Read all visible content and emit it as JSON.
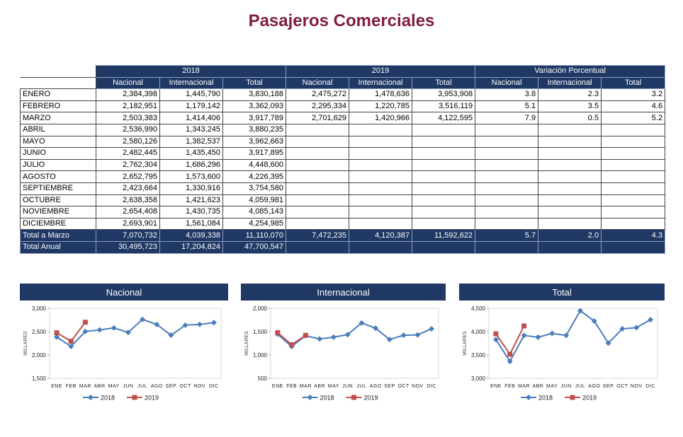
{
  "title": "Pasajeros Comerciales",
  "table": {
    "header_groups": [
      "2018",
      "2019",
      "Variación Porcentual"
    ],
    "columns": [
      "Nacional",
      "Internacional",
      "Total"
    ],
    "rows": [
      [
        "ENERO",
        "2,384,398",
        "1,445,790",
        "3,830,188",
        "2,475,272",
        "1,478,636",
        "3,953,908",
        "3.8",
        "2.3",
        "3.2"
      ],
      [
        "FEBRERO",
        "2,182,951",
        "1,179,142",
        "3,362,093",
        "2,295,334",
        "1,220,785",
        "3,516,119",
        "5.1",
        "3.5",
        "4.6"
      ],
      [
        "MARZO",
        "2,503,383",
        "1,414,406",
        "3,917,789",
        "2,701,629",
        "1,420,966",
        "4,122,595",
        "7.9",
        "0.5",
        "5.2"
      ],
      [
        "ABRIL",
        "2,536,990",
        "1,343,245",
        "3,880,235"
      ],
      [
        "MAYO",
        "2,580,126",
        "1,382,537",
        "3,962,663"
      ],
      [
        "JUNIO",
        "2,482,445",
        "1,435,450",
        "3,917,895"
      ],
      [
        "JULIO",
        "2,762,304",
        "1,686,296",
        "4,448,600"
      ],
      [
        "AGOSTO",
        "2,652,795",
        "1,573,600",
        "4,226,395"
      ],
      [
        "SEPTIEMBRE",
        "2,423,664",
        "1,330,916",
        "3,754,580"
      ],
      [
        "OCTUBRE",
        "2,638,358",
        "1,421,623",
        "4,059,981"
      ],
      [
        "NOVIEMBRE",
        "2,654,408",
        "1,430,735",
        "4,085,143"
      ],
      [
        "DICIEMBRE",
        "2,693,901",
        "1,561,084",
        "4,254,985"
      ]
    ],
    "totals": [
      [
        "Total a Marzo",
        "7,070,732",
        "4,039,338",
        "11,110,070",
        "7,472,235",
        "4,120,387",
        "11,592,622",
        "5.7",
        "2.0",
        "4.3"
      ],
      [
        "Total Anual",
        "30,495,723",
        "17,204,824",
        "47,700,547"
      ]
    ]
  },
  "chart_data": [
    {
      "type": "line",
      "title": "Nacional",
      "ylabel": "MILLARES",
      "categories": [
        "ENE",
        "FEB",
        "MAR",
        "ABR",
        "MAY",
        "JUN",
        "JUL",
        "AGO",
        "SEP",
        "OCT",
        "NOV",
        "DIC"
      ],
      "series": [
        {
          "name": "2018",
          "color": "#4a7ebb",
          "marker": "diamond",
          "values": [
            2384.398,
            2182.951,
            2503.383,
            2536.99,
            2580.126,
            2482.445,
            2762.304,
            2652.795,
            2423.664,
            2638.358,
            2654.408,
            2693.901
          ]
        },
        {
          "name": "2019",
          "color": "#c0504d",
          "marker": "square",
          "values": [
            2475.272,
            2295.334,
            2701.629,
            null,
            null,
            null,
            null,
            null,
            null,
            null,
            null,
            null
          ]
        }
      ],
      "ylim": [
        1500,
        3000
      ],
      "yticks": [
        {
          "value": 1500,
          "label": "1,500"
        },
        {
          "value": 2000,
          "label": "2,000"
        },
        {
          "value": 2500,
          "label": "2,500"
        },
        {
          "value": 3000,
          "label": "3,000"
        }
      ],
      "legend": "bottom"
    },
    {
      "type": "line",
      "title": "Internacional",
      "ylabel": "MILLARES",
      "categories": [
        "ENE",
        "FEB",
        "MAR",
        "ABR",
        "MAY",
        "JUN",
        "JUL",
        "AGO",
        "SEP",
        "OCT",
        "NOV",
        "DIC"
      ],
      "series": [
        {
          "name": "2018",
          "color": "#4a7ebb",
          "marker": "diamond",
          "values": [
            1445.79,
            1179.142,
            1414.406,
            1343.245,
            1382.537,
            1435.45,
            1686.296,
            1573.6,
            1330.916,
            1421.623,
            1430.735,
            1561.084
          ]
        },
        {
          "name": "2019",
          "color": "#c0504d",
          "marker": "square",
          "values": [
            1478.636,
            1220.785,
            1420.966,
            null,
            null,
            null,
            null,
            null,
            null,
            null,
            null,
            null
          ]
        }
      ],
      "ylim": [
        500,
        2000
      ],
      "yticks": [
        500,
        {
          "value": 1000,
          "label": "1,000"
        },
        {
          "value": 1500,
          "label": "1,500"
        },
        {
          "value": 2000,
          "label": "2,000"
        }
      ],
      "legend": "bottom"
    },
    {
      "type": "line",
      "title": "Total",
      "ylabel": "MILLARES",
      "categories": [
        "ENE",
        "FEB",
        "MAR",
        "ABR",
        "MAY",
        "JUN",
        "JUL",
        "AGO",
        "SEP",
        "OCT",
        "NOV",
        "DIC"
      ],
      "series": [
        {
          "name": "2018",
          "color": "#4a7ebb",
          "marker": "diamond",
          "values": [
            3830.188,
            3362.093,
            3917.789,
            3880.235,
            3962.663,
            3917.895,
            4448.6,
            4226.395,
            3754.58,
            4059.981,
            4085.143,
            4254.985
          ]
        },
        {
          "name": "2019",
          "color": "#c0504d",
          "marker": "square",
          "values": [
            3953.908,
            3516.119,
            4122.595,
            null,
            null,
            null,
            null,
            null,
            null,
            null,
            null,
            null
          ]
        }
      ],
      "ylim": [
        3000,
        4500
      ],
      "yticks": [
        {
          "value": 3000,
          "label": "3,000"
        },
        {
          "value": 3500,
          "label": "3,500"
        },
        {
          "value": 4000,
          "label": "4,000"
        },
        {
          "value": 4500,
          "label": "4,500"
        }
      ],
      "legend": "bottom"
    }
  ]
}
